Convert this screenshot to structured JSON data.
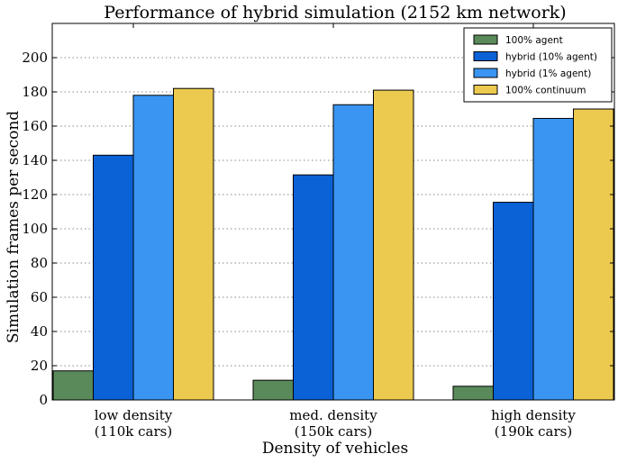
{
  "chart_data": {
    "type": "bar",
    "title": "Performance of hybrid simulation (2152 km network)",
    "xlabel": "Density of vehicles",
    "ylabel": "Simulation frames per second",
    "ylim": [
      0,
      220
    ],
    "yticks": [
      0,
      20,
      40,
      60,
      80,
      100,
      120,
      140,
      160,
      180,
      200
    ],
    "grid": "horizontal dotted",
    "legend_position": "top-right",
    "categories": [
      [
        "low density",
        "(110k cars)"
      ],
      [
        "med. density",
        "(150k cars)"
      ],
      [
        "high density",
        "(190k cars)"
      ]
    ],
    "series": [
      {
        "name": "100% agent",
        "color": "#5a8a5a",
        "values": [
          17,
          11.5,
          8
        ]
      },
      {
        "name": "hybrid (10% agent)",
        "color": "#0a62d6",
        "values": [
          143,
          131.5,
          115.5
        ]
      },
      {
        "name": "hybrid (1% agent)",
        "color": "#3a95f2",
        "values": [
          178,
          172.5,
          164.5
        ]
      },
      {
        "name": "100% continuum",
        "color": "#ecc94f",
        "values": [
          182,
          181,
          170
        ]
      }
    ]
  }
}
